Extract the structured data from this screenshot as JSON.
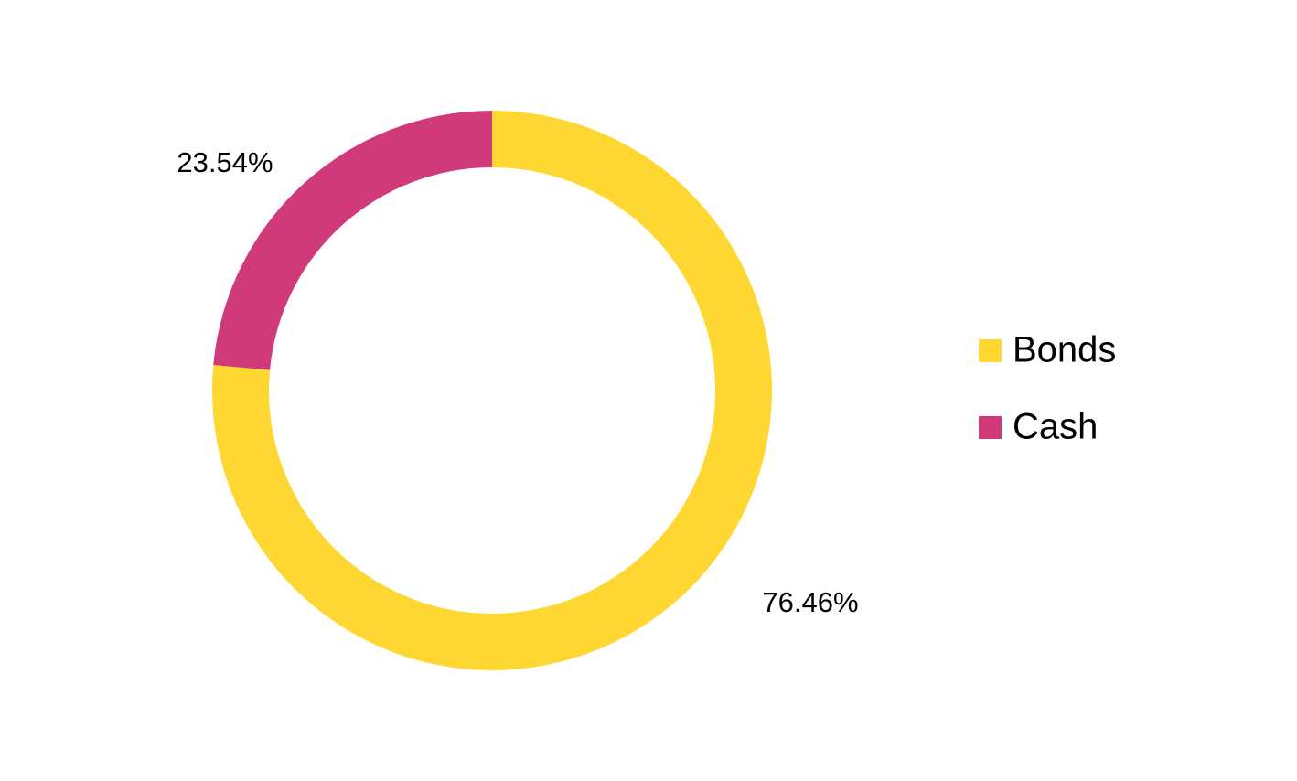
{
  "chart_data": {
    "type": "pie",
    "variant": "donut",
    "title": "",
    "legend_position": "right",
    "categories": [
      "Bonds",
      "Cash"
    ],
    "values": [
      76.46,
      23.54
    ],
    "data_labels": [
      "76.46%",
      "23.54%"
    ],
    "colors": [
      "#FFD733",
      "#D13A7A"
    ],
    "unit": "%"
  }
}
